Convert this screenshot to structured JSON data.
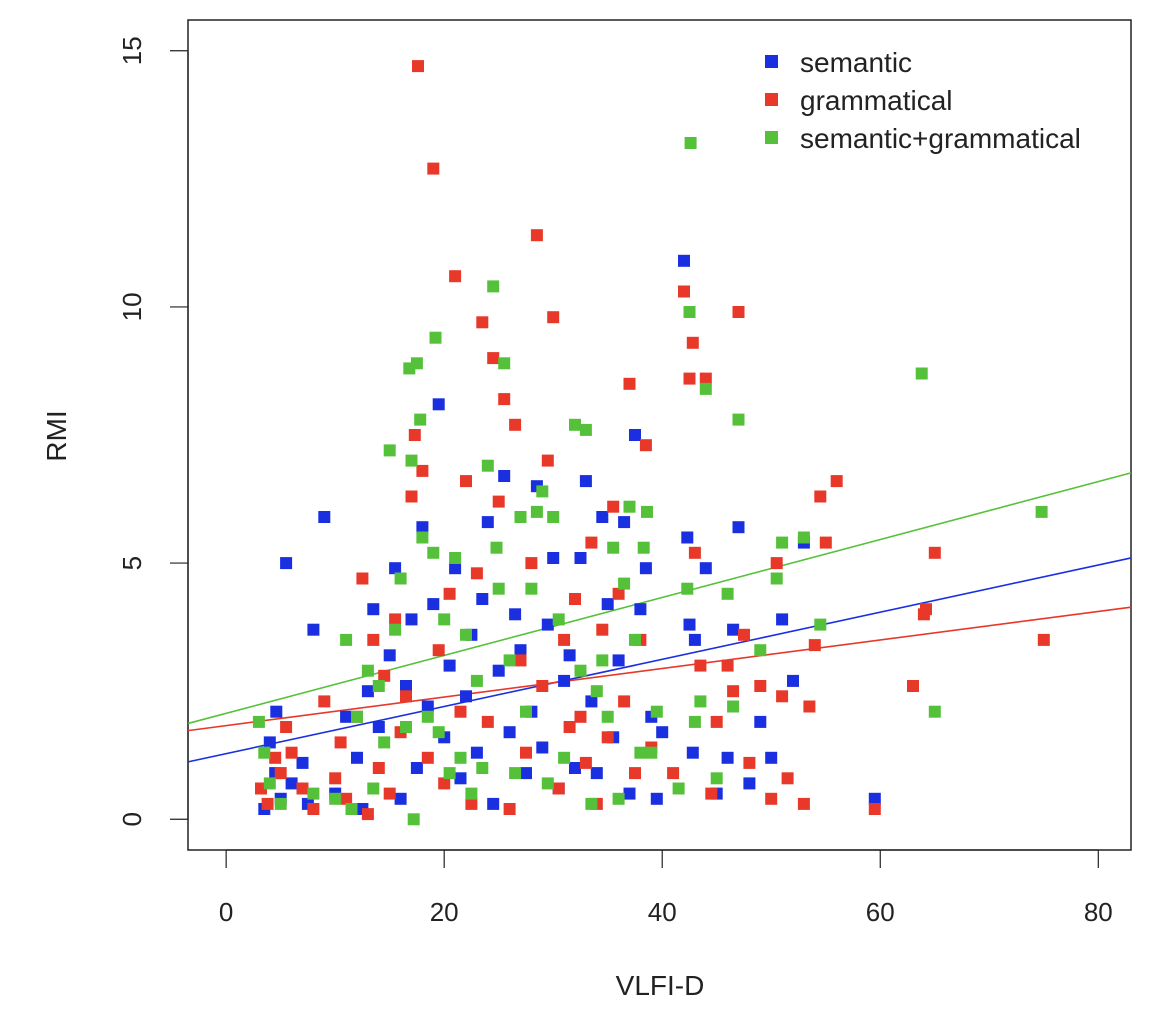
{
  "chart_data": {
    "type": "scatter",
    "title": "",
    "xlabel": "VLFI-D",
    "ylabel": "RMI",
    "xlim": [
      -3.5,
      83
    ],
    "ylim": [
      -0.6,
      15.6
    ],
    "xticks": [
      0,
      20,
      40,
      60,
      80
    ],
    "yticks": [
      0,
      5,
      10,
      15
    ],
    "grid": false,
    "legend_position": "top-right",
    "series": [
      {
        "name": "semantic",
        "color": "#1a2fe0",
        "points": [
          [
            3.5,
            0.2
          ],
          [
            4,
            1.5
          ],
          [
            4.5,
            0.9
          ],
          [
            4.6,
            2.1
          ],
          [
            5,
            0.4
          ],
          [
            5.5,
            5.0
          ],
          [
            6,
            0.7
          ],
          [
            7,
            1.1
          ],
          [
            7.5,
            0.3
          ],
          [
            8,
            3.7
          ],
          [
            9,
            5.9
          ],
          [
            10,
            0.5
          ],
          [
            11,
            2.0
          ],
          [
            12,
            1.2
          ],
          [
            12.5,
            0.2
          ],
          [
            13,
            2.5
          ],
          [
            13.5,
            4.1
          ],
          [
            14,
            1.8
          ],
          [
            15,
            3.2
          ],
          [
            15.5,
            4.9
          ],
          [
            16,
            0.4
          ],
          [
            16.5,
            2.6
          ],
          [
            17,
            3.9
          ],
          [
            17.5,
            1.0
          ],
          [
            18,
            5.7
          ],
          [
            18.5,
            2.2
          ],
          [
            19,
            4.2
          ],
          [
            19.5,
            8.1
          ],
          [
            20,
            1.6
          ],
          [
            20.5,
            3.0
          ],
          [
            21,
            4.9
          ],
          [
            21.5,
            0.8
          ],
          [
            22,
            2.4
          ],
          [
            22.5,
            3.6
          ],
          [
            23,
            1.3
          ],
          [
            23.5,
            4.3
          ],
          [
            24,
            5.8
          ],
          [
            24.5,
            0.3
          ],
          [
            25,
            2.9
          ],
          [
            25.5,
            6.7
          ],
          [
            26,
            1.7
          ],
          [
            26.5,
            4.0
          ],
          [
            27,
            3.3
          ],
          [
            27.5,
            0.9
          ],
          [
            28,
            2.1
          ],
          [
            28.5,
            6.5
          ],
          [
            29,
            1.4
          ],
          [
            29.5,
            3.8
          ],
          [
            30,
            5.1
          ],
          [
            30.5,
            0.6
          ],
          [
            31,
            2.7
          ],
          [
            31.5,
            3.2
          ],
          [
            32,
            1.0
          ],
          [
            32.5,
            5.1
          ],
          [
            33,
            6.6
          ],
          [
            33.5,
            2.3
          ],
          [
            34,
            0.9
          ],
          [
            34.5,
            5.9
          ],
          [
            35,
            4.2
          ],
          [
            35.5,
            1.6
          ],
          [
            36,
            3.1
          ],
          [
            36.5,
            5.8
          ],
          [
            37,
            0.5
          ],
          [
            37.5,
            7.5
          ],
          [
            38,
            4.1
          ],
          [
            38.5,
            4.9
          ],
          [
            39,
            2.0
          ],
          [
            39.5,
            0.4
          ],
          [
            40,
            1.7
          ],
          [
            42,
            10.9
          ],
          [
            42.3,
            5.5
          ],
          [
            42.5,
            3.8
          ],
          [
            42.8,
            1.3
          ],
          [
            43,
            3.5
          ],
          [
            44,
            4.9
          ],
          [
            45,
            0.5
          ],
          [
            46,
            1.2
          ],
          [
            46.5,
            3.7
          ],
          [
            47,
            5.7
          ],
          [
            48,
            0.7
          ],
          [
            49,
            1.9
          ],
          [
            50,
            1.2
          ],
          [
            51,
            3.9
          ],
          [
            52,
            2.7
          ],
          [
            53,
            5.4
          ],
          [
            59.5,
            0.4
          ]
        ]
      },
      {
        "name": "grammatical",
        "color": "#e8382a",
        "points": [
          [
            3.2,
            0.6
          ],
          [
            3.8,
            0.3
          ],
          [
            4.5,
            1.2
          ],
          [
            5,
            0.9
          ],
          [
            5.5,
            1.8
          ],
          [
            6,
            1.3
          ],
          [
            7,
            0.6
          ],
          [
            8,
            0.2
          ],
          [
            9,
            2.3
          ],
          [
            10,
            0.8
          ],
          [
            10.5,
            1.5
          ],
          [
            11,
            0.4
          ],
          [
            12,
            2.0
          ],
          [
            12.5,
            4.7
          ],
          [
            13,
            0.1
          ],
          [
            13.5,
            3.5
          ],
          [
            14,
            1.0
          ],
          [
            14.5,
            2.8
          ],
          [
            15,
            0.5
          ],
          [
            15.5,
            3.9
          ],
          [
            16,
            1.7
          ],
          [
            16.5,
            2.4
          ],
          [
            17,
            6.3
          ],
          [
            17.3,
            7.5
          ],
          [
            17.6,
            14.7
          ],
          [
            18,
            6.8
          ],
          [
            18.5,
            1.2
          ],
          [
            19,
            12.7
          ],
          [
            19.5,
            3.3
          ],
          [
            20,
            0.7
          ],
          [
            20.5,
            4.4
          ],
          [
            21,
            10.6
          ],
          [
            21.5,
            2.1
          ],
          [
            22,
            6.6
          ],
          [
            22.5,
            0.3
          ],
          [
            23,
            4.8
          ],
          [
            23.5,
            9.7
          ],
          [
            24,
            1.9
          ],
          [
            24.5,
            9.0
          ],
          [
            25,
            6.2
          ],
          [
            25.5,
            8.2
          ],
          [
            26,
            0.2
          ],
          [
            26.5,
            7.7
          ],
          [
            27,
            3.1
          ],
          [
            27.5,
            1.3
          ],
          [
            28,
            5.0
          ],
          [
            28.5,
            11.4
          ],
          [
            29,
            2.6
          ],
          [
            29.5,
            7.0
          ],
          [
            30,
            9.8
          ],
          [
            30.5,
            0.6
          ],
          [
            31,
            3.5
          ],
          [
            31.5,
            1.8
          ],
          [
            32,
            4.3
          ],
          [
            32.5,
            2.0
          ],
          [
            33,
            1.1
          ],
          [
            33.5,
            5.4
          ],
          [
            34,
            0.3
          ],
          [
            34.5,
            3.7
          ],
          [
            35,
            1.6
          ],
          [
            35.5,
            6.1
          ],
          [
            36,
            4.4
          ],
          [
            36.5,
            2.3
          ],
          [
            37,
            8.5
          ],
          [
            37.5,
            0.9
          ],
          [
            38,
            3.5
          ],
          [
            38.5,
            7.3
          ],
          [
            39,
            1.4
          ],
          [
            41,
            0.9
          ],
          [
            42,
            10.3
          ],
          [
            42.5,
            8.6
          ],
          [
            42.8,
            9.3
          ],
          [
            43,
            5.2
          ],
          [
            43.5,
            3.0
          ],
          [
            44,
            8.6
          ],
          [
            44.5,
            0.5
          ],
          [
            45,
            1.9
          ],
          [
            46,
            3.0
          ],
          [
            46.5,
            2.5
          ],
          [
            47,
            9.9
          ],
          [
            47.5,
            3.6
          ],
          [
            48,
            1.1
          ],
          [
            49,
            2.6
          ],
          [
            50,
            0.4
          ],
          [
            50.5,
            5.0
          ],
          [
            51,
            2.4
          ],
          [
            51.5,
            0.8
          ],
          [
            53,
            0.3
          ],
          [
            53.5,
            2.2
          ],
          [
            54,
            3.4
          ],
          [
            54.5,
            6.3
          ],
          [
            55,
            5.4
          ],
          [
            56,
            6.6
          ],
          [
            59.5,
            0.2
          ],
          [
            63,
            2.6
          ],
          [
            64,
            4.0
          ],
          [
            64.2,
            4.1
          ],
          [
            65,
            5.2
          ],
          [
            75,
            3.5
          ]
        ]
      },
      {
        "name": "semantic+grammatical",
        "color": "#55c13a",
        "points": [
          [
            3,
            1.9
          ],
          [
            3.5,
            1.3
          ],
          [
            4,
            0.7
          ],
          [
            5,
            0.3
          ],
          [
            8,
            0.5
          ],
          [
            10,
            0.4
          ],
          [
            11,
            3.5
          ],
          [
            11.5,
            0.2
          ],
          [
            12,
            2.0
          ],
          [
            13,
            2.9
          ],
          [
            13.5,
            0.6
          ],
          [
            14,
            2.6
          ],
          [
            14.5,
            1.5
          ],
          [
            15,
            7.2
          ],
          [
            15.5,
            3.7
          ],
          [
            16,
            4.7
          ],
          [
            16.5,
            1.8
          ],
          [
            16.8,
            8.8
          ],
          [
            17,
            7.0
          ],
          [
            17.2,
            0.0
          ],
          [
            17.5,
            8.9
          ],
          [
            17.8,
            7.8
          ],
          [
            18,
            5.5
          ],
          [
            18.5,
            2.0
          ],
          [
            19,
            5.2
          ],
          [
            19.2,
            9.4
          ],
          [
            19.5,
            1.7
          ],
          [
            20,
            3.9
          ],
          [
            20.5,
            0.9
          ],
          [
            21,
            5.1
          ],
          [
            21.5,
            1.2
          ],
          [
            22,
            3.6
          ],
          [
            22.5,
            0.5
          ],
          [
            23,
            2.7
          ],
          [
            23.5,
            1.0
          ],
          [
            24,
            6.9
          ],
          [
            24.5,
            10.4
          ],
          [
            24.8,
            5.3
          ],
          [
            25,
            4.5
          ],
          [
            25.5,
            8.9
          ],
          [
            26,
            3.1
          ],
          [
            26.5,
            0.9
          ],
          [
            27,
            5.9
          ],
          [
            27.5,
            2.1
          ],
          [
            28,
            4.5
          ],
          [
            28.5,
            6.0
          ],
          [
            29,
            6.4
          ],
          [
            29.5,
            0.7
          ],
          [
            30,
            5.9
          ],
          [
            30.5,
            3.9
          ],
          [
            31,
            1.2
          ],
          [
            32,
            7.7
          ],
          [
            32.5,
            2.9
          ],
          [
            33,
            7.6
          ],
          [
            33.5,
            0.3
          ],
          [
            34,
            2.5
          ],
          [
            34.5,
            3.1
          ],
          [
            35,
            2.0
          ],
          [
            35.5,
            5.3
          ],
          [
            36,
            0.4
          ],
          [
            36.5,
            4.6
          ],
          [
            37,
            6.1
          ],
          [
            37.5,
            3.5
          ],
          [
            38,
            1.3
          ],
          [
            38.3,
            5.3
          ],
          [
            38.6,
            6.0
          ],
          [
            39,
            1.3
          ],
          [
            39.5,
            2.1
          ],
          [
            41.5,
            0.6
          ],
          [
            42.3,
            4.5
          ],
          [
            42.5,
            9.9
          ],
          [
            42.6,
            13.2
          ],
          [
            43,
            1.9
          ],
          [
            43.5,
            2.3
          ],
          [
            44,
            8.4
          ],
          [
            45,
            0.8
          ],
          [
            46,
            4.4
          ],
          [
            46.5,
            2.2
          ],
          [
            47,
            7.8
          ],
          [
            49,
            3.3
          ],
          [
            50.5,
            4.7
          ],
          [
            51,
            5.4
          ],
          [
            53,
            5.5
          ],
          [
            54.5,
            3.8
          ],
          [
            63.8,
            8.7
          ],
          [
            65,
            2.1
          ],
          [
            74.8,
            6.0
          ]
        ]
      }
    ],
    "fit_lines": [
      {
        "series": "semantic",
        "color": "#1a2fe0",
        "x": [
          -3.5,
          83
        ],
        "y": [
          1.12,
          5.1
        ]
      },
      {
        "series": "grammatical",
        "color": "#e8382a",
        "x": [
          -3.5,
          83
        ],
        "y": [
          1.73,
          4.14
        ]
      },
      {
        "series": "semantic+grammatical",
        "color": "#55c13a",
        "x": [
          -3.5,
          83
        ],
        "y": [
          1.87,
          6.76
        ]
      }
    ]
  }
}
